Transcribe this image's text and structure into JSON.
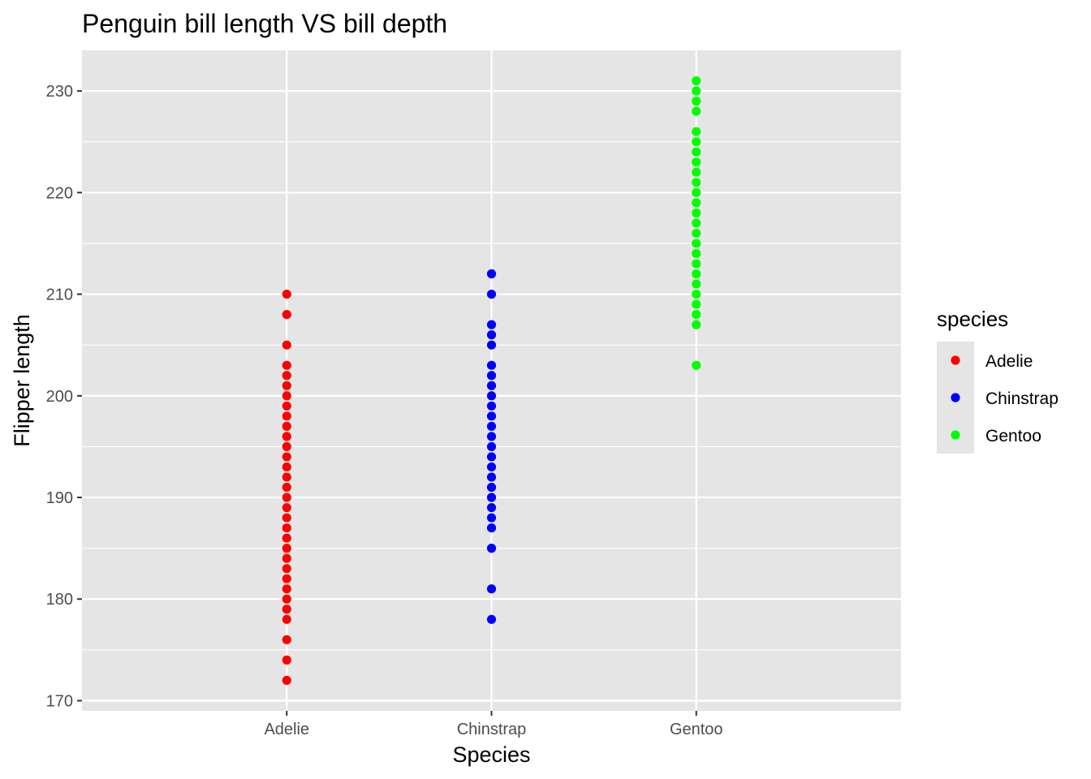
{
  "chart_data": {
    "type": "scatter",
    "title": "Penguin bill length VS bill depth",
    "xlabel": "Species",
    "ylabel": "Flipper length",
    "categories": [
      "Adelie",
      "Chinstrap",
      "Gentoo"
    ],
    "ylim": [
      169,
      234
    ],
    "yticks": [
      170,
      180,
      190,
      200,
      210,
      220,
      230
    ],
    "grid": true,
    "legend": {
      "title": "species",
      "position": "right",
      "entries": [
        "Adelie",
        "Chinstrap",
        "Gentoo"
      ]
    },
    "colors": {
      "Adelie": "#ff0000",
      "Chinstrap": "#0000ff",
      "Gentoo": "#00ff00",
      "panel": "#e5e5e5",
      "grid": "#ffffff",
      "legend_key": "#e5e5e5"
    },
    "series": [
      {
        "name": "Adelie",
        "category": "Adelie",
        "values": [
          172,
          174,
          176,
          178,
          179,
          180,
          181,
          182,
          183,
          184,
          185,
          186,
          187,
          188,
          189,
          190,
          191,
          192,
          193,
          194,
          195,
          196,
          197,
          198,
          199,
          200,
          201,
          202,
          203,
          205,
          208,
          210
        ]
      },
      {
        "name": "Chinstrap",
        "category": "Chinstrap",
        "values": [
          178,
          181,
          185,
          187,
          188,
          189,
          190,
          191,
          192,
          193,
          194,
          195,
          196,
          197,
          198,
          199,
          200,
          201,
          202,
          203,
          205,
          206,
          207,
          210,
          212
        ]
      },
      {
        "name": "Gentoo",
        "category": "Gentoo",
        "values": [
          203,
          207,
          208,
          209,
          210,
          211,
          212,
          213,
          214,
          215,
          216,
          217,
          218,
          219,
          220,
          221,
          222,
          223,
          224,
          225,
          226,
          228,
          229,
          230,
          231
        ]
      }
    ]
  }
}
